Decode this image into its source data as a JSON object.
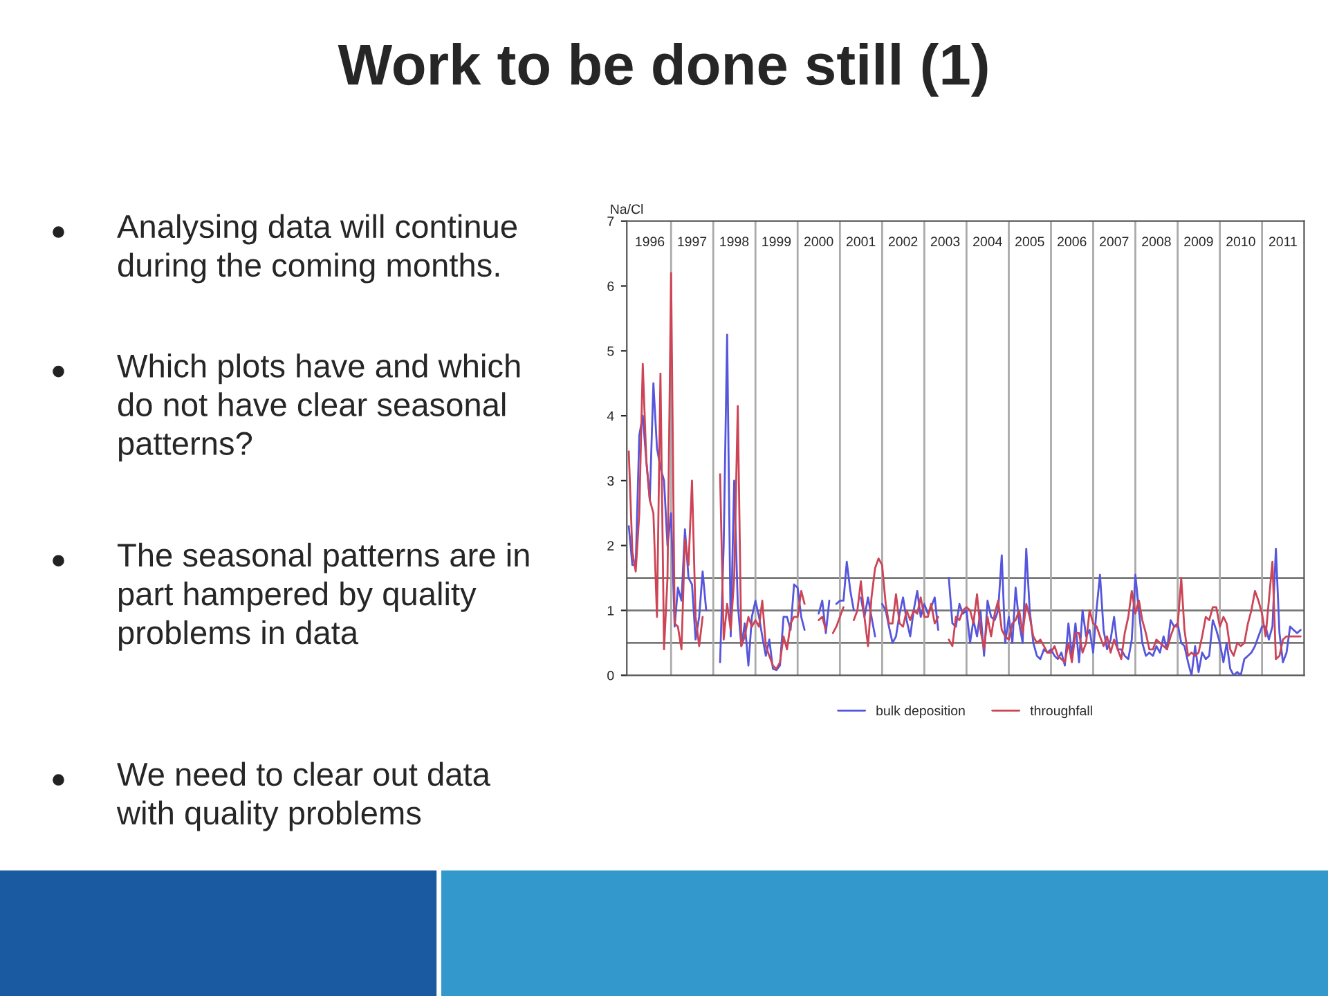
{
  "chart_data": {
    "type": "line",
    "title": "Work to be done still (1)",
    "ylabel": "Na/Cl",
    "annotations": [
      "Analysing data will continue\nduring the coming months.",
      "Which plots have and which\ndo not have clear seasonal\npatterns?",
      "The seasonal patterns are in\npart hampered by quality\nproblems in data",
      "We need to clear out data\nwith quality problems"
    ],
    "x": [
      "1996-01",
      "1996-02",
      "1996-03",
      "1996-04",
      "1996-05",
      "1996-06",
      "1996-07",
      "1996-08",
      "1996-09",
      "1996-10",
      "1996-11",
      "1996-12",
      "1997-01",
      "1997-02",
      "1997-03",
      "1997-04",
      "1997-05",
      "1997-06",
      "1997-07",
      "1997-08",
      "1997-09",
      "1997-10",
      "1997-11",
      "1997-12",
      "1998-01",
      "1998-02",
      "1998-03",
      "1998-04",
      "1998-05",
      "1998-06",
      "1998-07",
      "1998-08",
      "1998-09",
      "1998-10",
      "1998-11",
      "1998-12",
      "1999-01",
      "1999-02",
      "1999-03",
      "1999-04",
      "1999-05",
      "1999-06",
      "1999-07",
      "1999-08",
      "1999-09",
      "1999-10",
      "1999-11",
      "1999-12",
      "2000-01",
      "2000-02",
      "2000-03",
      "2000-04",
      "2000-05",
      "2000-06",
      "2000-07",
      "2000-08",
      "2000-09",
      "2000-10",
      "2000-11",
      "2000-12",
      "2001-01",
      "2001-02",
      "2001-03",
      "2001-04",
      "2001-05",
      "2001-06",
      "2001-07",
      "2001-08",
      "2001-09",
      "2001-10",
      "2001-11",
      "2001-12",
      "2002-01",
      "2002-02",
      "2002-03",
      "2002-04",
      "2002-05",
      "2002-06",
      "2002-07",
      "2002-08",
      "2002-09",
      "2002-10",
      "2002-11",
      "2002-12",
      "2003-01",
      "2003-02",
      "2003-03",
      "2003-04",
      "2003-05",
      "2003-06",
      "2003-07",
      "2003-08",
      "2003-09",
      "2003-10",
      "2003-11",
      "2003-12",
      "2004-01",
      "2004-02",
      "2004-03",
      "2004-04",
      "2004-05",
      "2004-06",
      "2004-07",
      "2004-08",
      "2004-09",
      "2004-10",
      "2004-11",
      "2004-12",
      "2005-01",
      "2005-02",
      "2005-03",
      "2005-04",
      "2005-05",
      "2005-06",
      "2005-07",
      "2005-08",
      "2005-09",
      "2005-10",
      "2005-11",
      "2005-12",
      "2006-01",
      "2006-02",
      "2006-03",
      "2006-04",
      "2006-05",
      "2006-06",
      "2006-07",
      "2006-08",
      "2006-09",
      "2006-10",
      "2006-11",
      "2006-12",
      "2007-01",
      "2007-02",
      "2007-03",
      "2007-04",
      "2007-05",
      "2007-06",
      "2007-07",
      "2007-08",
      "2007-09",
      "2007-10",
      "2007-11",
      "2007-12",
      "2008-01",
      "2008-02",
      "2008-03",
      "2008-04",
      "2008-05",
      "2008-06",
      "2008-07",
      "2008-08",
      "2008-09",
      "2008-10",
      "2008-11",
      "2008-12",
      "2009-01",
      "2009-02",
      "2009-03",
      "2009-04",
      "2009-05",
      "2009-06",
      "2009-07",
      "2009-08",
      "2009-09",
      "2009-10",
      "2009-11",
      "2009-12",
      "2010-01",
      "2010-02",
      "2010-03",
      "2010-04",
      "2010-05",
      "2010-06",
      "2010-07",
      "2010-08",
      "2010-09",
      "2010-10",
      "2010-11",
      "2010-12",
      "2011-01",
      "2011-02",
      "2011-03",
      "2011-04",
      "2011-05",
      "2011-06",
      "2011-07",
      "2011-08",
      "2011-09",
      "2011-10",
      "2011-11",
      "2011-12"
    ],
    "series": [
      {
        "name": "bulk deposition",
        "color": "#5555dd",
        "values": [
          2.3,
          1.7,
          1.7,
          3.7,
          4.0,
          3.3,
          2.7,
          4.5,
          3.5,
          3.2,
          3.0,
          2.0,
          2.5,
          0.75,
          1.35,
          1.15,
          2.25,
          1.5,
          1.4,
          0.55,
          0.9,
          1.6,
          1.0,
          null,
          null,
          null,
          0.2,
          2.0,
          5.25,
          0.6,
          3.0,
          1.1,
          0.45,
          0.8,
          0.15,
          0.9,
          1.15,
          0.9,
          0.6,
          0.3,
          0.55,
          0.1,
          0.08,
          0.15,
          0.9,
          0.9,
          0.7,
          1.4,
          1.35,
          0.9,
          0.7,
          null,
          null,
          null,
          0.95,
          1.15,
          0.65,
          1.15,
          null,
          1.1,
          1.15,
          1.15,
          1.75,
          1.3,
          1.0,
          null,
          1.2,
          0.9,
          1.2,
          0.9,
          0.6,
          null,
          1.1,
          1.0,
          0.75,
          0.5,
          0.6,
          0.95,
          1.2,
          0.85,
          0.6,
          1.0,
          1.3,
          0.9,
          1.1,
          0.95,
          1.05,
          1.2,
          0.7,
          null,
          null,
          1.5,
          0.8,
          0.75,
          1.1,
          0.95,
          1.0,
          0.5,
          0.85,
          0.6,
          1.0,
          0.3,
          1.15,
          0.9,
          0.85,
          1.0,
          1.85,
          0.5,
          0.9,
          0.5,
          1.35,
          0.8,
          0.5,
          1.95,
          1.0,
          0.5,
          0.3,
          0.25,
          0.4,
          0.35,
          0.4,
          0.3,
          0.25,
          0.35,
          0.15,
          0.8,
          0.3,
          0.8,
          0.2,
          1.0,
          0.6,
          0.7,
          0.35,
          1.05,
          1.55,
          0.7,
          0.4,
          0.55,
          0.9,
          0.4,
          0.4,
          0.3,
          0.25,
          0.55,
          1.55,
          1.0,
          0.5,
          0.3,
          0.35,
          0.3,
          0.45,
          0.35,
          0.6,
          0.4,
          0.85,
          0.75,
          0.8,
          0.5,
          0.45,
          0.2,
          0.0,
          0.45,
          0.05,
          0.35,
          0.25,
          0.3,
          0.85,
          0.7,
          0.5,
          0.2,
          0.5,
          0.1,
          0.0,
          0.05,
          0.0,
          0.25,
          0.3,
          0.35,
          0.45,
          0.6,
          0.75,
          0.75,
          0.55,
          0.75,
          1.95,
          0.65,
          0.2,
          0.35,
          0.75,
          0.7,
          0.65,
          0.7
        ]
      },
      {
        "name": "throughfall",
        "color": "#cc4455",
        "values": [
          3.45,
          1.9,
          1.6,
          2.5,
          4.8,
          3.3,
          2.7,
          2.5,
          0.9,
          4.65,
          0.4,
          1.5,
          6.2,
          0.8,
          0.75,
          0.4,
          2.1,
          1.7,
          3.0,
          0.9,
          0.45,
          0.9,
          null,
          null,
          null,
          null,
          3.1,
          0.55,
          1.1,
          0.7,
          1.5,
          4.15,
          0.45,
          0.6,
          0.9,
          0.75,
          0.85,
          0.75,
          1.15,
          0.45,
          0.3,
          0.15,
          0.1,
          0.2,
          0.6,
          0.4,
          0.8,
          0.9,
          0.9,
          1.3,
          1.1,
          null,
          null,
          null,
          0.85,
          0.9,
          0.7,
          null,
          0.65,
          0.75,
          0.9,
          1.05,
          null,
          null,
          0.85,
          1.0,
          1.45,
          0.9,
          0.45,
          1.2,
          1.65,
          1.8,
          1.7,
          1.1,
          0.8,
          0.8,
          1.25,
          0.8,
          0.75,
          1.0,
          0.85,
          1.0,
          0.95,
          1.2,
          0.9,
          0.9,
          1.1,
          0.8,
          0.9,
          null,
          null,
          0.55,
          0.45,
          0.9,
          0.85,
          1.0,
          1.05,
          1.0,
          0.8,
          1.25,
          0.7,
          0.4,
          0.9,
          0.6,
          0.95,
          1.15,
          0.7,
          0.6,
          0.55,
          0.8,
          0.85,
          1.0,
          0.65,
          1.1,
          0.9,
          0.6,
          0.5,
          0.55,
          0.45,
          0.35,
          0.35,
          0.45,
          0.3,
          0.25,
          0.2,
          0.5,
          0.2,
          0.65,
          0.65,
          0.35,
          0.5,
          1.0,
          0.8,
          0.75,
          0.6,
          0.45,
          0.6,
          0.35,
          0.55,
          0.4,
          0.25,
          0.65,
          0.9,
          1.3,
          0.95,
          1.15,
          0.85,
          0.65,
          0.4,
          0.4,
          0.55,
          0.5,
          0.45,
          0.4,
          0.6,
          0.75,
          0.75,
          1.5,
          0.7,
          0.3,
          0.35,
          0.3,
          0.35,
          0.6,
          0.9,
          0.85,
          1.05,
          1.05,
          0.75,
          0.9,
          0.8,
          0.4,
          0.3,
          0.5,
          0.45,
          0.5,
          0.8,
          1.0,
          1.3,
          1.15,
          0.95,
          0.6,
          1.15,
          1.75,
          0.25,
          0.3,
          0.55,
          0.6,
          0.6,
          0.6,
          0.6,
          0.6
        ]
      }
    ],
    "xlim": [
      "1995-12-15",
      "2011-12-31"
    ],
    "xticks": [
      {
        "value": "1996-07",
        "label": "1996"
      },
      {
        "value": "1997-07",
        "label": "1997"
      },
      {
        "value": "1998-07",
        "label": "1998"
      },
      {
        "value": "1999-07",
        "label": "1999"
      },
      {
        "value": "2000-07",
        "label": "2000"
      },
      {
        "value": "2001-07",
        "label": "2001"
      },
      {
        "value": "2002-07",
        "label": "2002"
      },
      {
        "value": "2003-07",
        "label": "2003"
      },
      {
        "value": "2004-07",
        "label": "2004"
      },
      {
        "value": "2005-07",
        "label": "2005"
      },
      {
        "value": "2006-07",
        "label": "2006"
      },
      {
        "value": "2007-07",
        "label": "2007"
      },
      {
        "value": "2008-07",
        "label": "2008"
      },
      {
        "value": "2009-07",
        "label": "2009"
      },
      {
        "value": "2010-07",
        "label": "2010"
      },
      {
        "value": "2011-07",
        "label": "2011"
      }
    ],
    "ylim": [
      0,
      7
    ],
    "yticks": [
      0,
      1,
      2,
      3,
      4,
      5,
      6,
      7
    ],
    "ref_lines": [
      {
        "axis": "y",
        "value": 0.5,
        "color": "#777777"
      },
      {
        "axis": "y",
        "value": 1,
        "color": "#777777"
      },
      {
        "axis": "y",
        "value": 1.5,
        "color": "#777777"
      },
      {
        "axis": "x",
        "value": "1997-01",
        "color": "#aaaaaa"
      },
      {
        "axis": "x",
        "value": "1998-01",
        "color": "#aaaaaa"
      },
      {
        "axis": "x",
        "value": "1999-01",
        "color": "#aaaaaa"
      },
      {
        "axis": "x",
        "value": "2000-01",
        "color": "#aaaaaa"
      },
      {
        "axis": "x",
        "value": "2001-01",
        "color": "#aaaaaa"
      },
      {
        "axis": "x",
        "value": "2002-01",
        "color": "#aaaaaa"
      },
      {
        "axis": "x",
        "value": "2003-01",
        "color": "#aaaaaa"
      },
      {
        "axis": "x",
        "value": "2004-01",
        "color": "#aaaaaa"
      },
      {
        "axis": "x",
        "value": "2005-01",
        "color": "#aaaaaa"
      },
      {
        "axis": "x",
        "value": "2006-01",
        "color": "#aaaaaa"
      },
      {
        "axis": "x",
        "value": "2007-01",
        "color": "#aaaaaa"
      },
      {
        "axis": "x",
        "value": "2008-01",
        "color": "#aaaaaa"
      },
      {
        "axis": "x",
        "value": "2009-01",
        "color": "#aaaaaa"
      },
      {
        "axis": "x",
        "value": "2010-01",
        "color": "#aaaaaa"
      },
      {
        "axis": "x",
        "value": "2011-01",
        "color": "#aaaaaa"
      }
    ],
    "legend": "bottom",
    "grid": false,
    "line_style": "solid",
    "marker": "none"
  }
}
